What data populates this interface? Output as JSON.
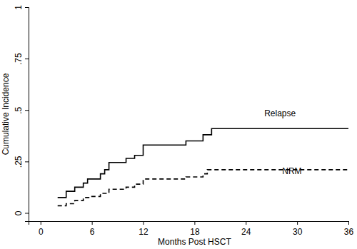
{
  "chart_data": {
    "type": "line",
    "x_label": "Months Post HSCT",
    "y_label": "Cumulative Incidence",
    "xlim": [
      -1.4,
      36
    ],
    "ylim": [
      -0.04,
      1
    ],
    "xticks": [
      0,
      6,
      12,
      18,
      24,
      30,
      36
    ],
    "yticks": [
      0,
      {
        "value": 0.25,
        "label": ".25"
      },
      {
        "value": 0.5,
        "label": ".5"
      },
      {
        "value": 0.75,
        "label": ".75"
      },
      1
    ],
    "grid": false,
    "series": [
      {
        "name": "Relapse",
        "color": "#000000",
        "line_style": "solid",
        "x": [
          2,
          3,
          4,
          5,
          5.5,
          7,
          7.5,
          8,
          10,
          11,
          12,
          17,
          19,
          20,
          36
        ],
        "values": [
          0.075,
          0.105,
          0.125,
          0.145,
          0.165,
          0.19,
          0.21,
          0.245,
          0.265,
          0.28,
          0.33,
          0.35,
          0.38,
          0.41,
          0.41
        ]
      },
      {
        "name": "NRM",
        "color": "#000000",
        "line_style": "dashed",
        "x": [
          2,
          3,
          4,
          5,
          6,
          7,
          8,
          10,
          11,
          12,
          17,
          19,
          19.5,
          36
        ],
        "values": [
          0.035,
          0.045,
          0.06,
          0.075,
          0.08,
          0.095,
          0.115,
          0.125,
          0.14,
          0.165,
          0.175,
          0.19,
          0.21,
          0.21
        ]
      }
    ],
    "annotations": [
      {
        "text": "Relapse",
        "x": 28,
        "y": 0.48
      },
      {
        "text": "NRM",
        "x": 29.4,
        "y": 0.2
      }
    ]
  }
}
